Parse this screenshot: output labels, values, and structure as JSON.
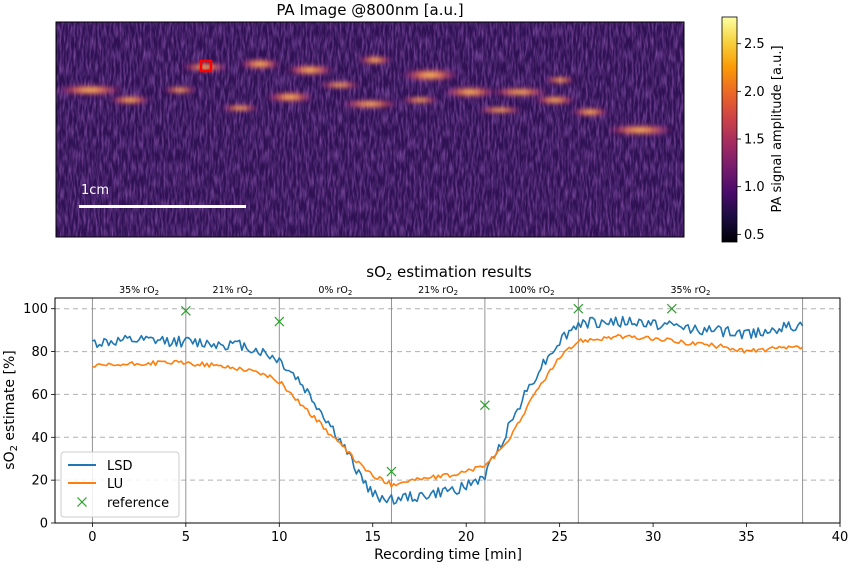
{
  "colors": {
    "lsd": "#1f77b4",
    "lu": "#ff7f0e",
    "reference": "#2ca02c",
    "marker_box": "#ff0000",
    "scale_bar": "#ffffff",
    "colormap": [
      "#000004",
      "#1b0c41",
      "#4a0c6b",
      "#781c6d",
      "#a52c60",
      "#cf4446",
      "#ed6925",
      "#fb9b06",
      "#f7d13d",
      "#fcffa4"
    ]
  },
  "chart_data": [
    {
      "type": "heatmap",
      "title": "PA Image @800nm [a.u.]",
      "scale_bar_label": "1cm",
      "marker": "red square region of interest",
      "colorbar": {
        "label": "PA signal amplitude [a.u.]",
        "range": [
          0.42,
          2.78
        ],
        "ticks": [
          0.5,
          1.0,
          1.5,
          2.0,
          2.5
        ],
        "tick_labels": [
          "0.5",
          "1.0",
          "1.5",
          "2.0",
          "2.5"
        ],
        "colormap": "magma"
      }
    },
    {
      "type": "line",
      "title_prefix": "sO",
      "title_sub": "2",
      "title_suffix": " estimation results",
      "xlabel": "Recording time [min]",
      "ylabel_prefix": "sO",
      "ylabel_sub": "2",
      "ylabel_suffix": " estimate [%]",
      "xlim": [
        -2,
        40
      ],
      "ylim": [
        0,
        105
      ],
      "xticks": [
        0,
        5,
        10,
        15,
        20,
        25,
        30,
        35,
        40
      ],
      "yticks": [
        0,
        20,
        40,
        60,
        80,
        100
      ],
      "grid": "horizontal dashed",
      "legend_position": "lower-left",
      "phase_boundaries": [
        0,
        5,
        10,
        16,
        21,
        26,
        38
      ],
      "phases": [
        {
          "label": "35% rO",
          "sub": "2"
        },
        {
          "label": "21% rO",
          "sub": "2"
        },
        {
          "label": "0% rO",
          "sub": "2"
        },
        {
          "label": "21% rO",
          "sub": "2"
        },
        {
          "label": "100% rO",
          "sub": "2"
        },
        {
          "label": "35% rO",
          "sub": "2"
        }
      ],
      "series": [
        {
          "name": "LSD",
          "style": "line",
          "x": [
            0,
            2,
            4,
            6,
            8,
            9,
            10,
            11,
            12,
            13,
            14,
            15,
            16,
            17,
            18,
            19,
            20,
            21,
            22,
            23,
            24,
            25,
            26,
            28,
            30,
            32,
            33,
            34,
            35,
            36,
            38
          ],
          "y": [
            84,
            85,
            85,
            84,
            83,
            80,
            76,
            67,
            55,
            42,
            27,
            13,
            11,
            12,
            13,
            15,
            17,
            22,
            40,
            58,
            73,
            85,
            93,
            94,
            93,
            91,
            90,
            89,
            88,
            90,
            92
          ]
        },
        {
          "name": "LU",
          "style": "line",
          "x": [
            0,
            2,
            4,
            6,
            8,
            9,
            10,
            11,
            12,
            13,
            14,
            15,
            16,
            17,
            18,
            19,
            20,
            21,
            22,
            23,
            24,
            25,
            26,
            28,
            30,
            32,
            33,
            34,
            35,
            36,
            38
          ],
          "y": [
            73,
            74,
            75,
            74,
            72,
            70,
            66,
            57,
            48,
            39,
            30,
            22,
            18,
            20,
            21,
            22,
            24,
            27,
            35,
            50,
            65,
            77,
            85,
            87,
            86,
            84,
            83,
            82,
            80,
            81,
            82
          ]
        },
        {
          "name": "reference",
          "style": "marker",
          "x": [
            5,
            10,
            16,
            21,
            26,
            31
          ],
          "y": [
            99,
            94,
            24,
            55,
            100,
            100
          ]
        }
      ]
    }
  ]
}
